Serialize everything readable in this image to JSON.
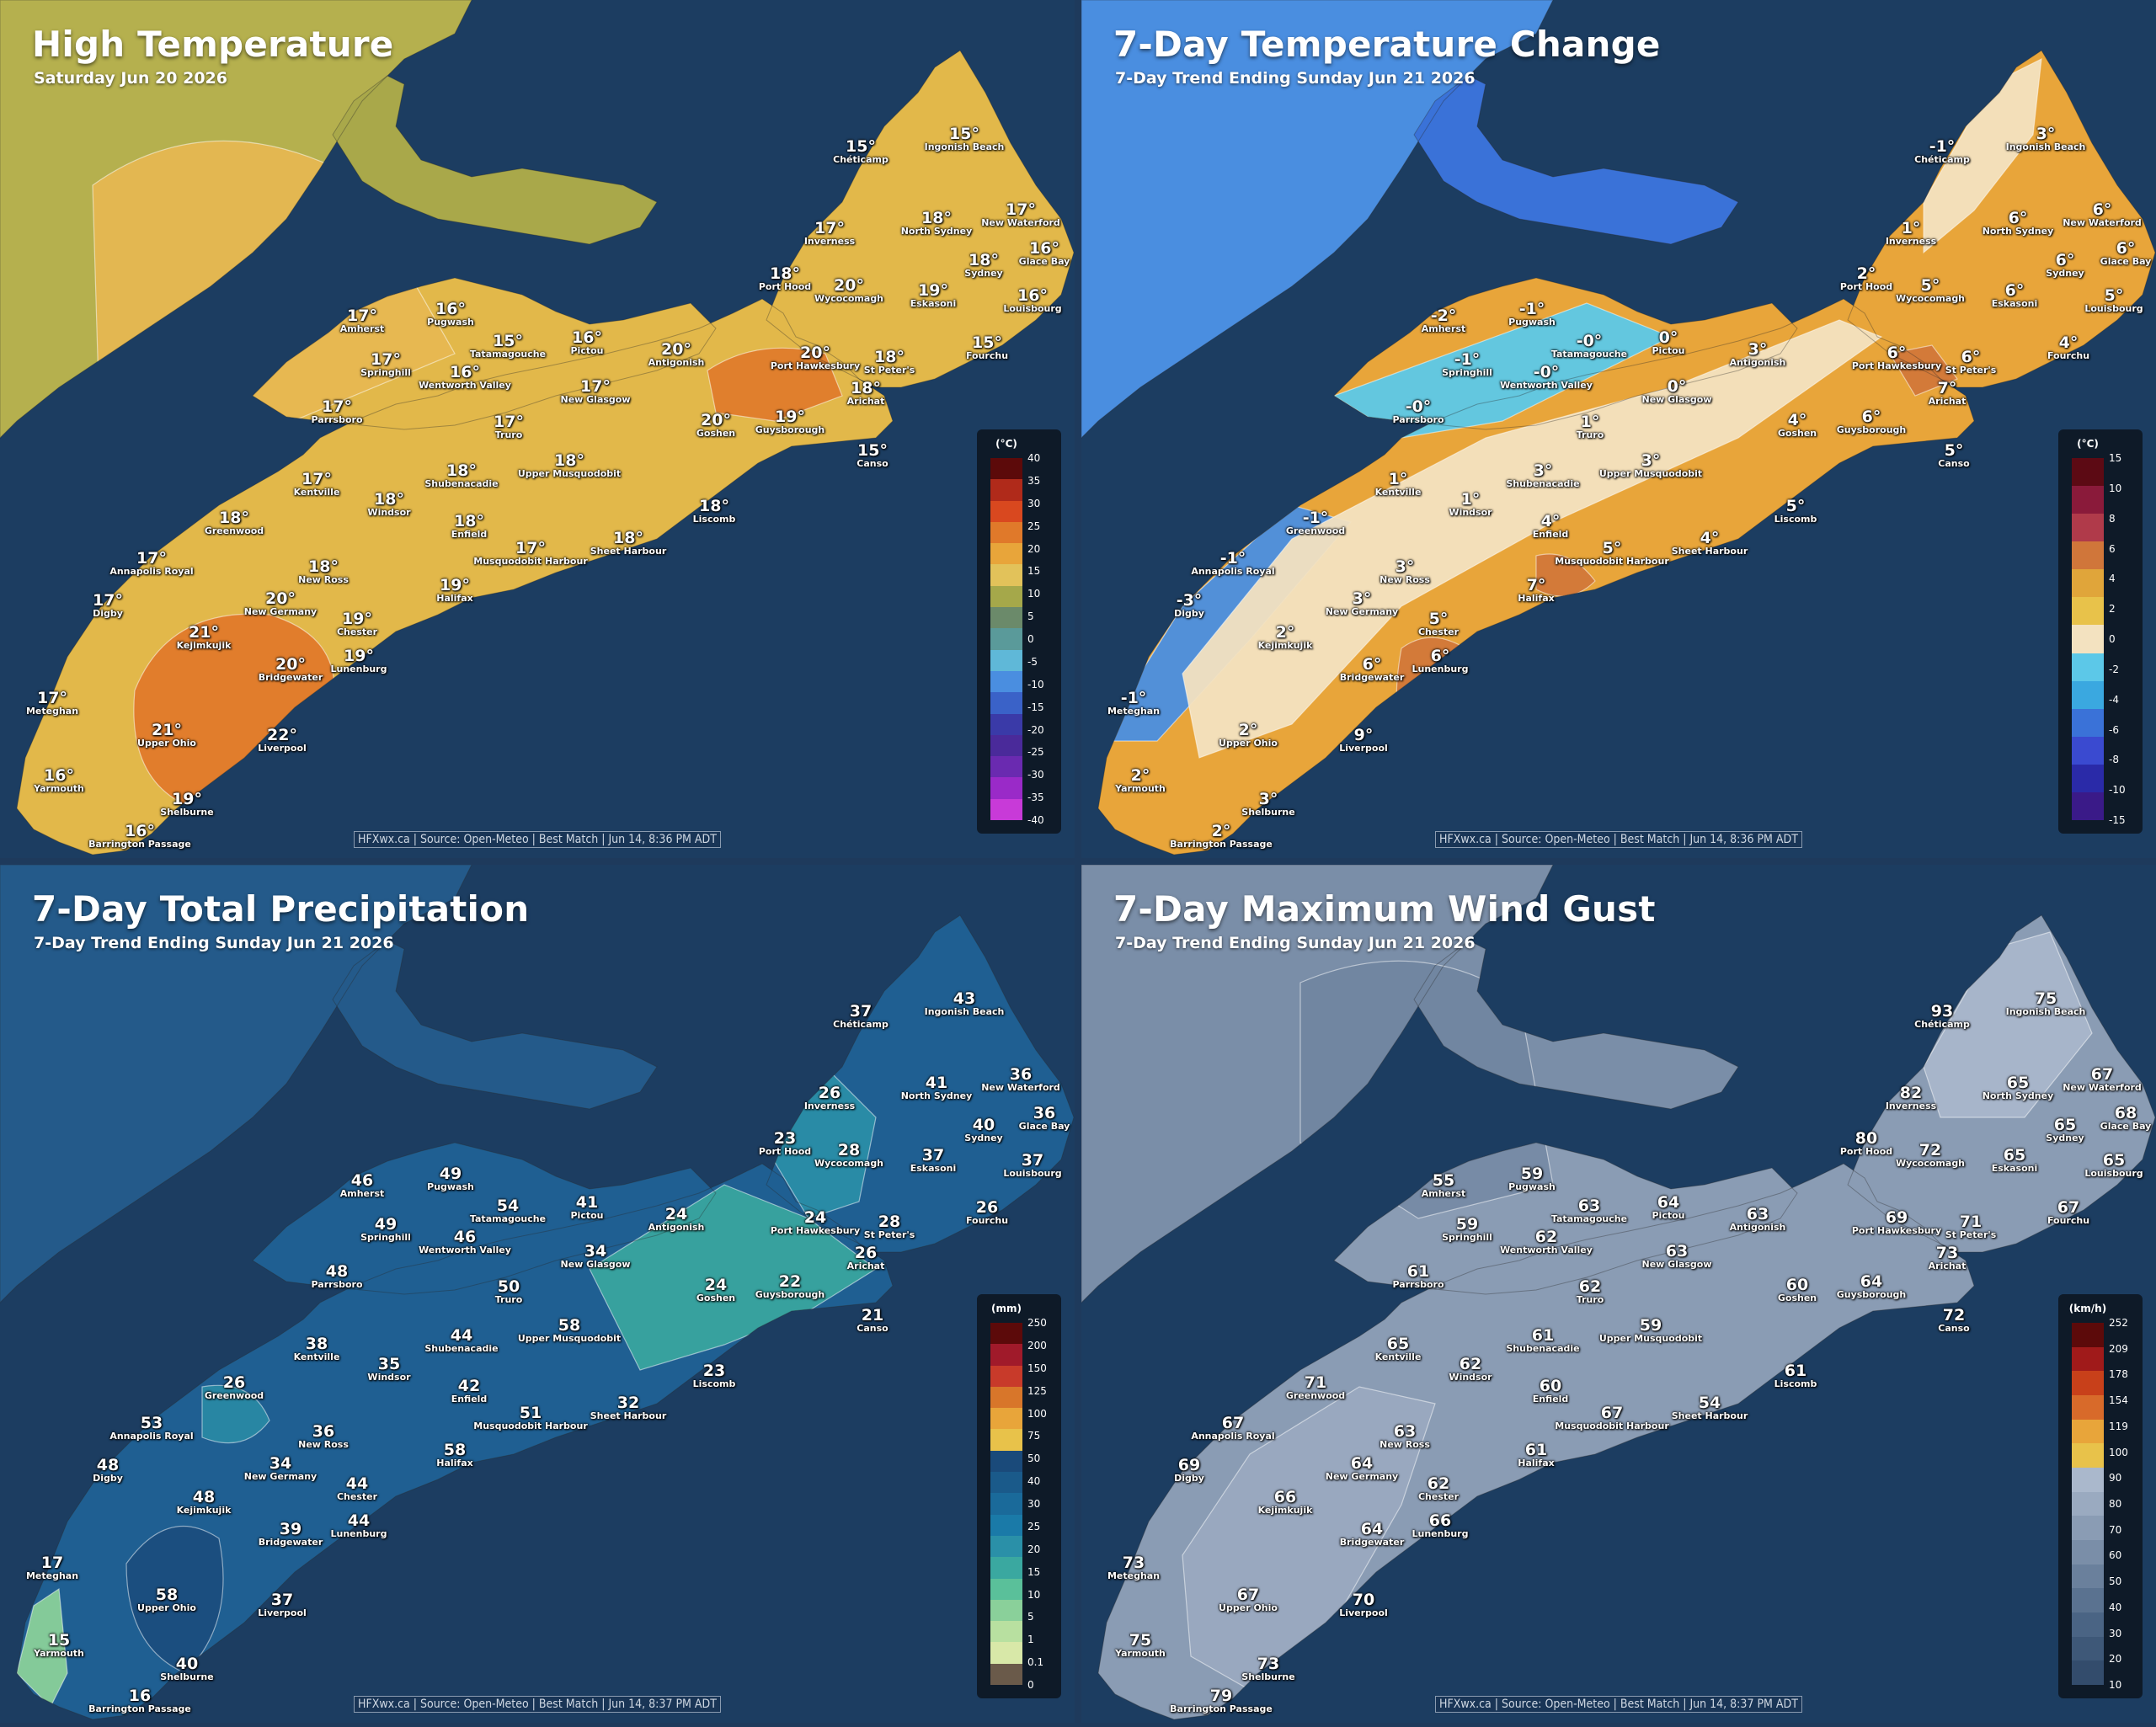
{
  "panels": [
    {
      "id": "high-temp",
      "title": "High Temperature",
      "subtitle": "Saturday Jun 20 2026",
      "credit": "HFXwx.ca | Source: Open-Meteo | Best Match | Jun 14, 8:36 PM ADT",
      "legend_unit": "(°C)",
      "legend_ticks": [
        "40",
        "35",
        "30",
        "25",
        "20",
        "15",
        "10",
        "5",
        "0",
        "-5",
        "-10",
        "-15",
        "-20",
        "-25",
        "-30",
        "-35",
        "-40"
      ],
      "legend_colors": [
        "#5c0a0a",
        "#b02a1a",
        "#d9481f",
        "#e0792a",
        "#e8a53a",
        "#e2c25a",
        "#a5a84a",
        "#6b8a6a",
        "#5a9a9a",
        "#5fb8d8",
        "#4a8ee0",
        "#3a62c8",
        "#3a3aa8",
        "#4a2a9a",
        "#6a2ab0",
        "#9a2ac8",
        "#c83ad8"
      ],
      "labels": [
        {
          "name": "Chéticamp",
          "value": "15°"
        },
        {
          "name": "Ingonish Beach",
          "value": "15°"
        },
        {
          "name": "Inverness",
          "value": "17°"
        },
        {
          "name": "North Sydney",
          "value": "18°"
        },
        {
          "name": "New Waterford",
          "value": "17°"
        },
        {
          "name": "Glace Bay",
          "value": "16°"
        },
        {
          "name": "Sydney",
          "value": "18°"
        },
        {
          "name": "Port Hood",
          "value": "18°"
        },
        {
          "name": "Wycocomagh",
          "value": "20°"
        },
        {
          "name": "Eskasoni",
          "value": "19°"
        },
        {
          "name": "Louisbourg",
          "value": "16°"
        },
        {
          "name": "Amherst",
          "value": "17°"
        },
        {
          "name": "Pugwash",
          "value": "16°"
        },
        {
          "name": "Tatamagouche",
          "value": "15°"
        },
        {
          "name": "Pictou",
          "value": "16°"
        },
        {
          "name": "Antigonish",
          "value": "20°"
        },
        {
          "name": "Port Hawkesbury",
          "value": "20°"
        },
        {
          "name": "St Peter's",
          "value": "18°"
        },
        {
          "name": "Fourchu",
          "value": "15°"
        },
        {
          "name": "Springhill",
          "value": "17°"
        },
        {
          "name": "Wentworth Valley",
          "value": "16°"
        },
        {
          "name": "New Glasgow",
          "value": "17°"
        },
        {
          "name": "Arichat",
          "value": "18°"
        },
        {
          "name": "Parrsboro",
          "value": "17°"
        },
        {
          "name": "Truro",
          "value": "17°"
        },
        {
          "name": "Goshen",
          "value": "20°"
        },
        {
          "name": "Guysborough",
          "value": "19°"
        },
        {
          "name": "Canso",
          "value": "15°"
        },
        {
          "name": "Kentville",
          "value": "17°"
        },
        {
          "name": "Shubenacadie",
          "value": "18°"
        },
        {
          "name": "Upper Musquodobit",
          "value": "18°"
        },
        {
          "name": "Windsor",
          "value": "18°"
        },
        {
          "name": "Greenwood",
          "value": "18°"
        },
        {
          "name": "Enfield",
          "value": "18°"
        },
        {
          "name": "Liscomb",
          "value": "18°"
        },
        {
          "name": "Annapolis Royal",
          "value": "17°"
        },
        {
          "name": "New Ross",
          "value": "18°"
        },
        {
          "name": "Musquodobit Harbour",
          "value": "17°"
        },
        {
          "name": "Sheet Harbour",
          "value": "18°"
        },
        {
          "name": "Digby",
          "value": "17°"
        },
        {
          "name": "New Germany",
          "value": "20°"
        },
        {
          "name": "Halifax",
          "value": "19°"
        },
        {
          "name": "Chester",
          "value": "19°"
        },
        {
          "name": "Kejimkujik",
          "value": "21°"
        },
        {
          "name": "Bridgewater",
          "value": "20°"
        },
        {
          "name": "Lunenburg",
          "value": "19°"
        },
        {
          "name": "Meteghan",
          "value": "17°"
        },
        {
          "name": "Upper Ohio",
          "value": "21°"
        },
        {
          "name": "Liverpool",
          "value": "22°"
        },
        {
          "name": "Yarmouth",
          "value": "16°"
        },
        {
          "name": "Shelburne",
          "value": "19°"
        },
        {
          "name": "Barrington Passage",
          "value": "16°"
        }
      ]
    },
    {
      "id": "temp-change",
      "title": "7-Day Temperature Change",
      "subtitle": "7-Day Trend Ending Sunday Jun 21 2026",
      "credit": "HFXwx.ca | Source: Open-Meteo | Best Match | Jun 14, 8:36 PM ADT",
      "legend_unit": "(°C)",
      "legend_ticks": [
        "15",
        "10",
        "8",
        "6",
        "4",
        "2",
        "0",
        "-2",
        "-4",
        "-6",
        "-8",
        "-10",
        "-15"
      ],
      "legend_colors": [
        "#5c0a14",
        "#8a1a3a",
        "#b03a4a",
        "#d0763a",
        "#e0a53a",
        "#e8c24a",
        "#f3e2c0",
        "#5cc8e8",
        "#3aa8e0",
        "#3a72d8",
        "#3a4ad0",
        "#2a2aa8",
        "#3a1a88"
      ],
      "labels": [
        {
          "name": "Chéticamp",
          "value": "-1°"
        },
        {
          "name": "Ingonish Beach",
          "value": "3°"
        },
        {
          "name": "Inverness",
          "value": "1°"
        },
        {
          "name": "North Sydney",
          "value": "6°"
        },
        {
          "name": "New Waterford",
          "value": "6°"
        },
        {
          "name": "Glace Bay",
          "value": "6°"
        },
        {
          "name": "Sydney",
          "value": "6°"
        },
        {
          "name": "Port Hood",
          "value": "2°"
        },
        {
          "name": "Wycocomagh",
          "value": "5°"
        },
        {
          "name": "Eskasoni",
          "value": "6°"
        },
        {
          "name": "Louisbourg",
          "value": "5°"
        },
        {
          "name": "Amherst",
          "value": "-2°"
        },
        {
          "name": "Pugwash",
          "value": "-1°"
        },
        {
          "name": "Tatamagouche",
          "value": "-0°"
        },
        {
          "name": "Pictou",
          "value": "0°"
        },
        {
          "name": "Antigonish",
          "value": "3°"
        },
        {
          "name": "Port Hawkesbury",
          "value": "6°"
        },
        {
          "name": "St Peter's",
          "value": "6°"
        },
        {
          "name": "Fourchu",
          "value": "4°"
        },
        {
          "name": "Springhill",
          "value": "-1°"
        },
        {
          "name": "Wentworth Valley",
          "value": "-0°"
        },
        {
          "name": "New Glasgow",
          "value": "0°"
        },
        {
          "name": "Arichat",
          "value": "7°"
        },
        {
          "name": "Parrsboro",
          "value": "-0°"
        },
        {
          "name": "Truro",
          "value": "1°"
        },
        {
          "name": "Goshen",
          "value": "4°"
        },
        {
          "name": "Guysborough",
          "value": "6°"
        },
        {
          "name": "Canso",
          "value": "5°"
        },
        {
          "name": "Kentville",
          "value": "1°"
        },
        {
          "name": "Shubenacadie",
          "value": "3°"
        },
        {
          "name": "Upper Musquodobit",
          "value": "3°"
        },
        {
          "name": "Windsor",
          "value": "1°"
        },
        {
          "name": "Greenwood",
          "value": "-1°"
        },
        {
          "name": "Enfield",
          "value": "4°"
        },
        {
          "name": "Liscomb",
          "value": "5°"
        },
        {
          "name": "Annapolis Royal",
          "value": "-1°"
        },
        {
          "name": "New Ross",
          "value": "3°"
        },
        {
          "name": "Musquodobit Harbour",
          "value": "5°"
        },
        {
          "name": "Sheet Harbour",
          "value": "4°"
        },
        {
          "name": "Digby",
          "value": "-3°"
        },
        {
          "name": "New Germany",
          "value": "3°"
        },
        {
          "name": "Halifax",
          "value": "7°"
        },
        {
          "name": "Chester",
          "value": "5°"
        },
        {
          "name": "Kejimkujik",
          "value": "2°"
        },
        {
          "name": "Bridgewater",
          "value": "6°"
        },
        {
          "name": "Lunenburg",
          "value": "6°"
        },
        {
          "name": "Meteghan",
          "value": "-1°"
        },
        {
          "name": "Upper Ohio",
          "value": "2°"
        },
        {
          "name": "Liverpool",
          "value": "9°"
        },
        {
          "name": "Yarmouth",
          "value": "2°"
        },
        {
          "name": "Shelburne",
          "value": "3°"
        },
        {
          "name": "Barrington Passage",
          "value": "2°"
        }
      ]
    },
    {
      "id": "precip",
      "title": "7-Day Total Precipitation",
      "subtitle": "7-Day Trend Ending Sunday Jun 21 2026",
      "credit": "HFXwx.ca | Source: Open-Meteo | Best Match | Jun 14, 8:37 PM ADT",
      "legend_unit": "(mm)",
      "legend_ticks": [
        "250",
        "200",
        "150",
        "125",
        "100",
        "75",
        "50",
        "40",
        "30",
        "25",
        "20",
        "15",
        "10",
        "5",
        "1",
        "0.1",
        "0"
      ],
      "legend_colors": [
        "#5c0a0a",
        "#a01a2a",
        "#c83a2a",
        "#d8762a",
        "#e8a53a",
        "#e8c24a",
        "#1a4a7a",
        "#1a5a8a",
        "#1a6a9a",
        "#1a7aa8",
        "#2a90a8",
        "#3aa8a0",
        "#5ac09a",
        "#8ad09a",
        "#b8e0a0",
        "#d8e8a8",
        "#6a5a4a"
      ],
      "labels": [
        {
          "name": "Chéticamp",
          "value": "37"
        },
        {
          "name": "Ingonish Beach",
          "value": "43"
        },
        {
          "name": "Inverness",
          "value": "26"
        },
        {
          "name": "North Sydney",
          "value": "41"
        },
        {
          "name": "New Waterford",
          "value": "36"
        },
        {
          "name": "Glace Bay",
          "value": "36"
        },
        {
          "name": "Sydney",
          "value": "40"
        },
        {
          "name": "Port Hood",
          "value": "23"
        },
        {
          "name": "Wycocomagh",
          "value": "28"
        },
        {
          "name": "Eskasoni",
          "value": "37"
        },
        {
          "name": "Louisbourg",
          "value": "37"
        },
        {
          "name": "Amherst",
          "value": "46"
        },
        {
          "name": "Pugwash",
          "value": "49"
        },
        {
          "name": "Tatamagouche",
          "value": "54"
        },
        {
          "name": "Pictou",
          "value": "41"
        },
        {
          "name": "Antigonish",
          "value": "24"
        },
        {
          "name": "Port Hawkesbury",
          "value": "24"
        },
        {
          "name": "St Peter's",
          "value": "28"
        },
        {
          "name": "Fourchu",
          "value": "26"
        },
        {
          "name": "Springhill",
          "value": "49"
        },
        {
          "name": "Wentworth Valley",
          "value": "46"
        },
        {
          "name": "New Glasgow",
          "value": "34"
        },
        {
          "name": "Arichat",
          "value": "26"
        },
        {
          "name": "Parrsboro",
          "value": "48"
        },
        {
          "name": "Truro",
          "value": "50"
        },
        {
          "name": "Goshen",
          "value": "24"
        },
        {
          "name": "Guysborough",
          "value": "22"
        },
        {
          "name": "Canso",
          "value": "21"
        },
        {
          "name": "Kentville",
          "value": "38"
        },
        {
          "name": "Shubenacadie",
          "value": "44"
        },
        {
          "name": "Upper Musquodobit",
          "value": "58"
        },
        {
          "name": "Windsor",
          "value": "35"
        },
        {
          "name": "Greenwood",
          "value": "26"
        },
        {
          "name": "Enfield",
          "value": "42"
        },
        {
          "name": "Liscomb",
          "value": "23"
        },
        {
          "name": "Annapolis Royal",
          "value": "53"
        },
        {
          "name": "New Ross",
          "value": "36"
        },
        {
          "name": "Musquodobit Harbour",
          "value": "51"
        },
        {
          "name": "Sheet Harbour",
          "value": "32"
        },
        {
          "name": "Digby",
          "value": "48"
        },
        {
          "name": "New Germany",
          "value": "34"
        },
        {
          "name": "Halifax",
          "value": "58"
        },
        {
          "name": "Chester",
          "value": "44"
        },
        {
          "name": "Kejimkujik",
          "value": "48"
        },
        {
          "name": "Bridgewater",
          "value": "39"
        },
        {
          "name": "Lunenburg",
          "value": "44"
        },
        {
          "name": "Meteghan",
          "value": "17"
        },
        {
          "name": "Upper Ohio",
          "value": "58"
        },
        {
          "name": "Liverpool",
          "value": "37"
        },
        {
          "name": "Yarmouth",
          "value": "15"
        },
        {
          "name": "Shelburne",
          "value": "40"
        },
        {
          "name": "Barrington Passage",
          "value": "16"
        }
      ]
    },
    {
      "id": "wind-gust",
      "title": "7-Day Maximum Wind Gust",
      "subtitle": "7-Day Trend Ending Sunday Jun 21 2026",
      "credit": "HFXwx.ca | Source: Open-Meteo | Best Match | Jun 14, 8:37 PM ADT",
      "legend_unit": "(km/h)",
      "legend_ticks": [
        "252",
        "209",
        "178",
        "154",
        "119",
        "100",
        "90",
        "80",
        "70",
        "60",
        "50",
        "40",
        "30",
        "20",
        "10"
      ],
      "legend_colors": [
        "#5c0a0a",
        "#a01a1a",
        "#c8401a",
        "#d86a2a",
        "#e8a53a",
        "#e8c24a",
        "#aab8cc",
        "#9aaac0",
        "#8a9cb4",
        "#7a8ea8",
        "#6a809c",
        "#5a7290",
        "#4a6484",
        "#3e5878",
        "#334c6c"
      ],
      "labels": [
        {
          "name": "Chéticamp",
          "value": "93"
        },
        {
          "name": "Ingonish Beach",
          "value": "75"
        },
        {
          "name": "Inverness",
          "value": "82"
        },
        {
          "name": "North Sydney",
          "value": "65"
        },
        {
          "name": "New Waterford",
          "value": "67"
        },
        {
          "name": "Glace Bay",
          "value": "68"
        },
        {
          "name": "Sydney",
          "value": "65"
        },
        {
          "name": "Port Hood",
          "value": "80"
        },
        {
          "name": "Wycocomagh",
          "value": "72"
        },
        {
          "name": "Eskasoni",
          "value": "65"
        },
        {
          "name": "Louisbourg",
          "value": "65"
        },
        {
          "name": "Amherst",
          "value": "55"
        },
        {
          "name": "Pugwash",
          "value": "59"
        },
        {
          "name": "Tatamagouche",
          "value": "63"
        },
        {
          "name": "Pictou",
          "value": "64"
        },
        {
          "name": "Antigonish",
          "value": "63"
        },
        {
          "name": "Port Hawkesbury",
          "value": "69"
        },
        {
          "name": "St Peter's",
          "value": "71"
        },
        {
          "name": "Fourchu",
          "value": "67"
        },
        {
          "name": "Springhill",
          "value": "59"
        },
        {
          "name": "Wentworth Valley",
          "value": "62"
        },
        {
          "name": "New Glasgow",
          "value": "63"
        },
        {
          "name": "Arichat",
          "value": "73"
        },
        {
          "name": "Parrsboro",
          "value": "61"
        },
        {
          "name": "Truro",
          "value": "62"
        },
        {
          "name": "Goshen",
          "value": "60"
        },
        {
          "name": "Guysborough",
          "value": "64"
        },
        {
          "name": "Canso",
          "value": "72"
        },
        {
          "name": "Kentville",
          "value": "65"
        },
        {
          "name": "Shubenacadie",
          "value": "61"
        },
        {
          "name": "Upper Musquodobit",
          "value": "59"
        },
        {
          "name": "Windsor",
          "value": "62"
        },
        {
          "name": "Greenwood",
          "value": "71"
        },
        {
          "name": "Enfield",
          "value": "60"
        },
        {
          "name": "Liscomb",
          "value": "61"
        },
        {
          "name": "Annapolis Royal",
          "value": "67"
        },
        {
          "name": "New Ross",
          "value": "63"
        },
        {
          "name": "Musquodobit Harbour",
          "value": "67"
        },
        {
          "name": "Sheet Harbour",
          "value": "54"
        },
        {
          "name": "Digby",
          "value": "69"
        },
        {
          "name": "New Germany",
          "value": "64"
        },
        {
          "name": "Halifax",
          "value": "61"
        },
        {
          "name": "Chester",
          "value": "62"
        },
        {
          "name": "Kejimkujik",
          "value": "66"
        },
        {
          "name": "Bridgewater",
          "value": "64"
        },
        {
          "name": "Lunenburg",
          "value": "66"
        },
        {
          "name": "Meteghan",
          "value": "73"
        },
        {
          "name": "Upper Ohio",
          "value": "67"
        },
        {
          "name": "Liverpool",
          "value": "70"
        },
        {
          "name": "Yarmouth",
          "value": "75"
        },
        {
          "name": "Shelburne",
          "value": "73"
        },
        {
          "name": "Barrington Passage",
          "value": "79"
        }
      ]
    }
  ]
}
